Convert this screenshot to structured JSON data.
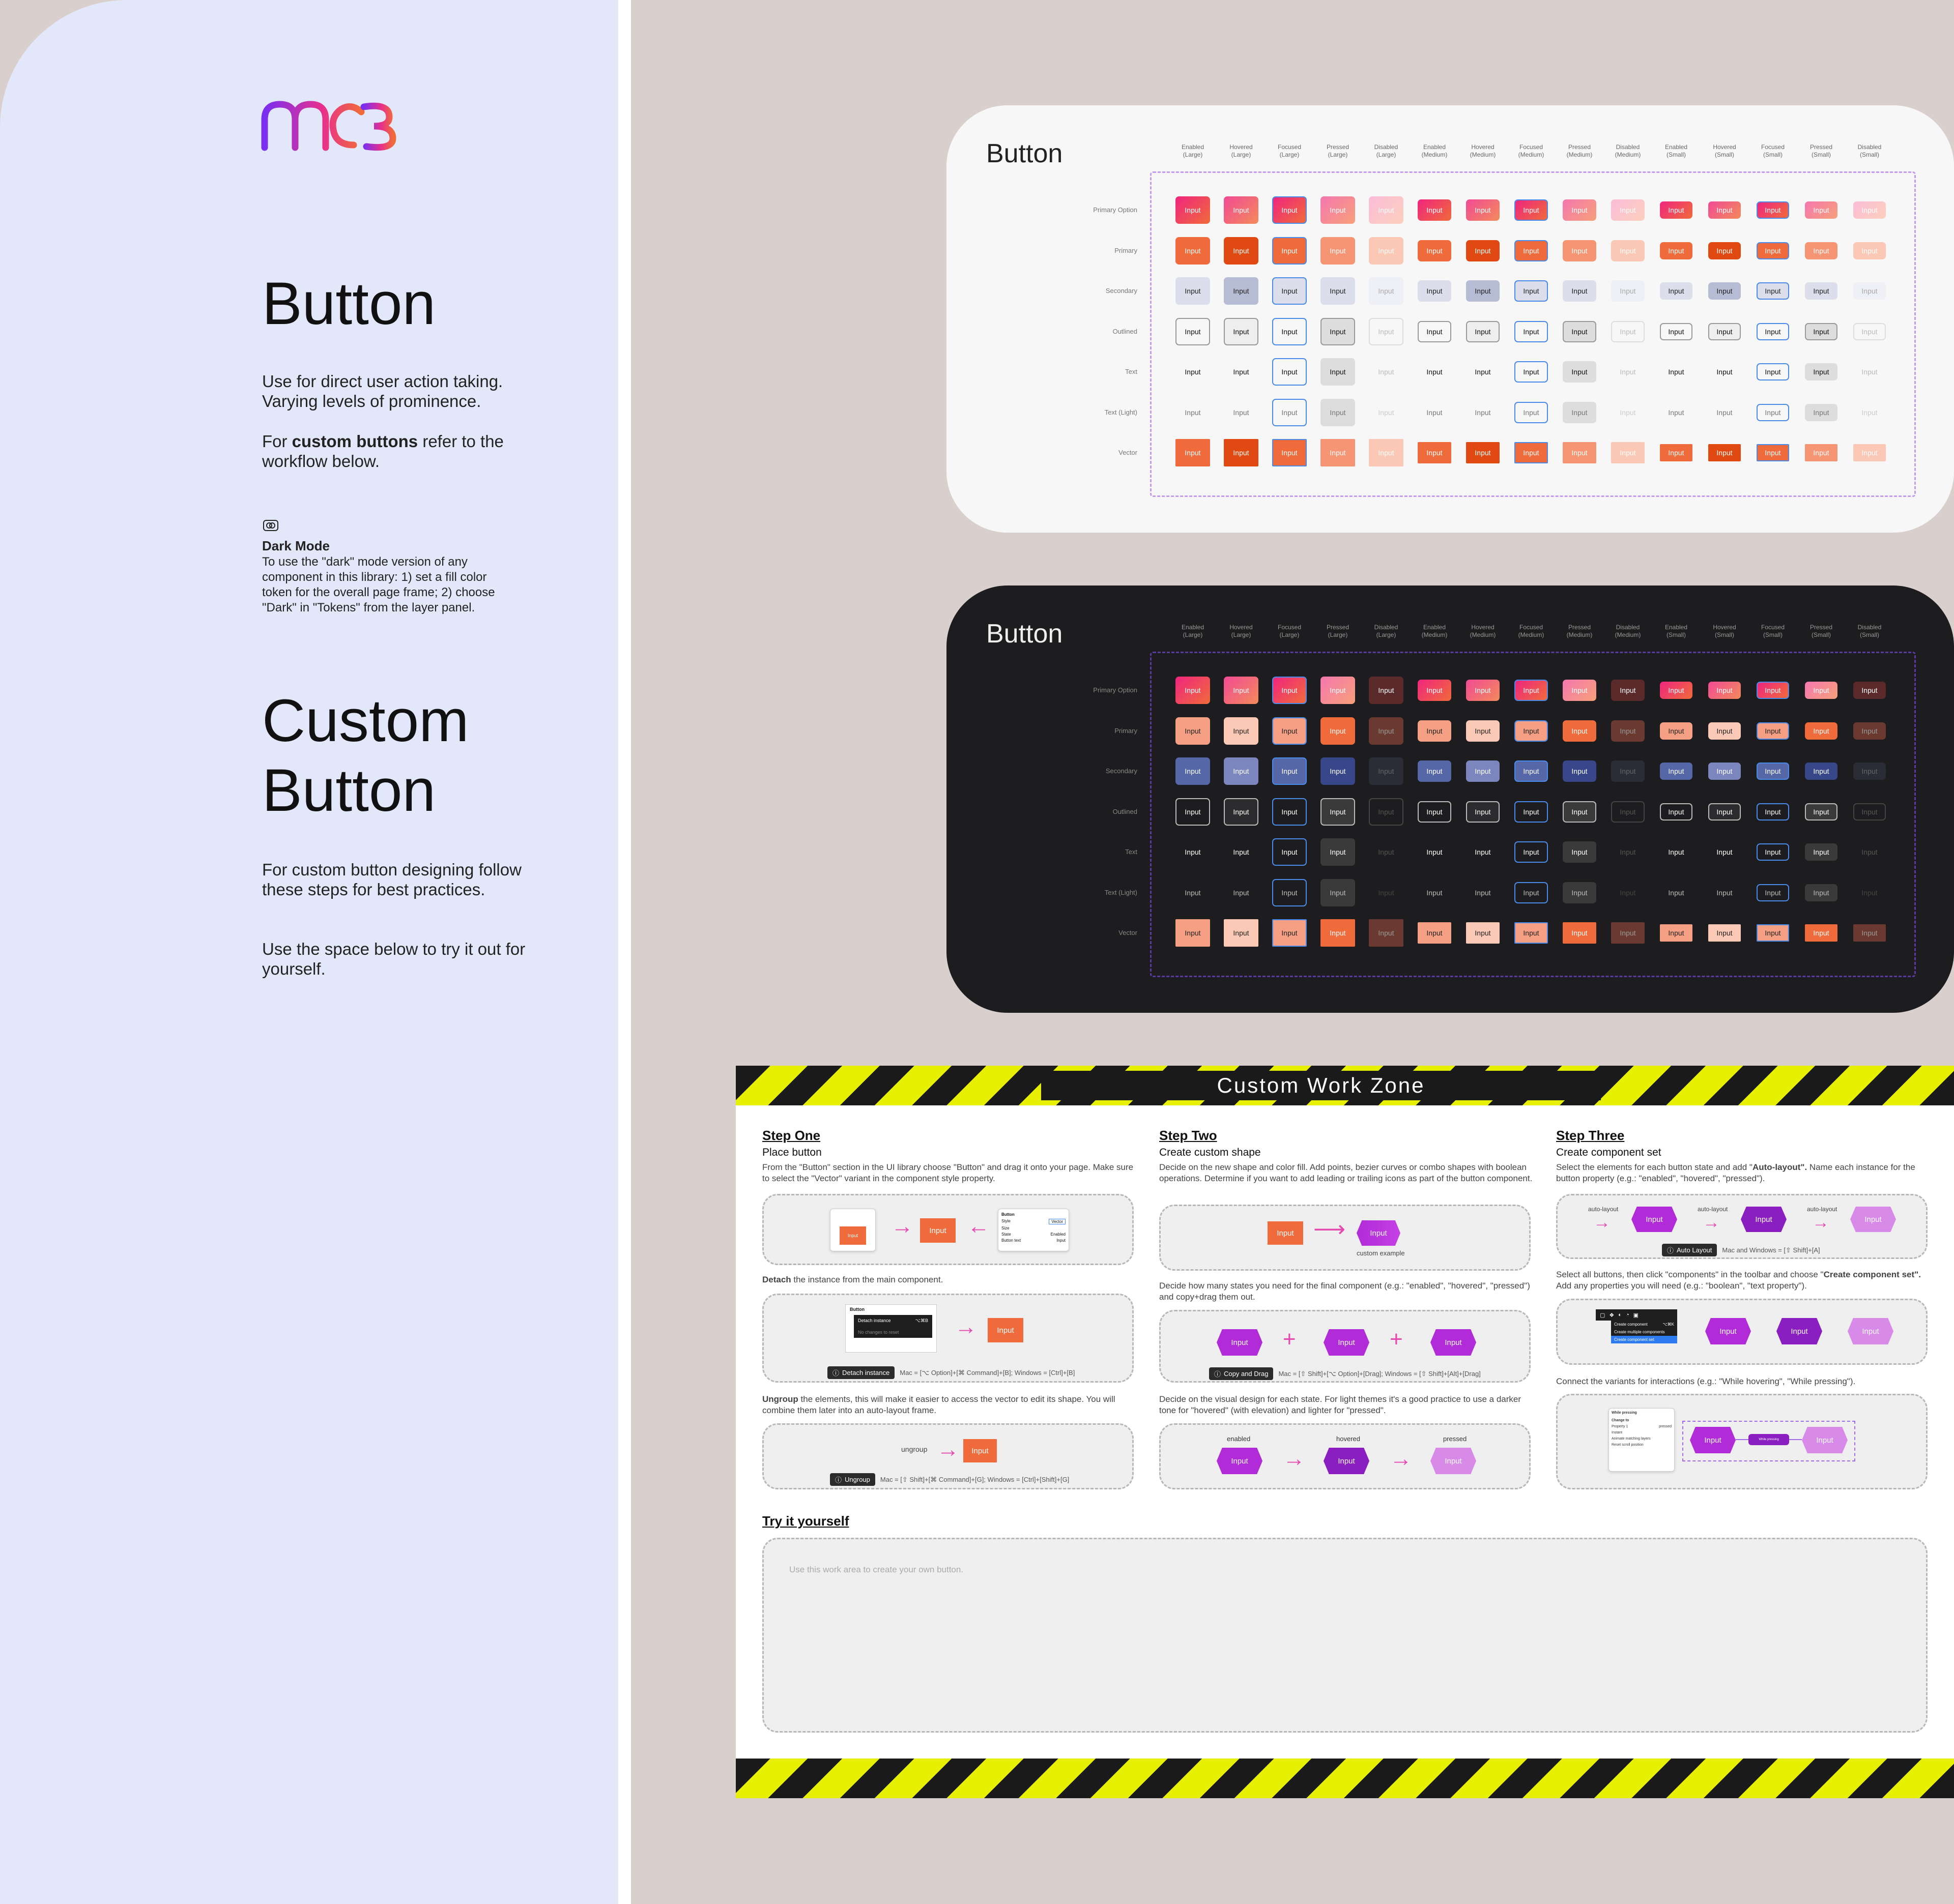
{
  "sidebar": {
    "logo_text": "mc3",
    "button_title": "Button",
    "button_desc_1": "Use for direct user action taking. Varying levels of prominence.",
    "button_desc_2_pre": "For ",
    "button_desc_2_bold": "custom buttons",
    "button_desc_2_post": " refer to the workflow below.",
    "dark_mode_title": "Dark  Mode",
    "dark_mode_desc": "To use the \"dark\" mode version of any component in this library: 1) set a fill color token for the overall page frame; 2) choose \"Dark\" in \"Tokens\" from the layer panel.",
    "custom_title_1": "Custom",
    "custom_title_2": "Button",
    "custom_desc_1": "For custom button designing follow these steps for best practices.",
    "custom_desc_2": "Use the space below to try it out for yourself."
  },
  "grid": {
    "title": "Button",
    "button_label": "Input",
    "columns": [
      [
        "Enabled",
        "(Large)"
      ],
      [
        "Hovered",
        "(Large)"
      ],
      [
        "Focused",
        "(Large)"
      ],
      [
        "Pressed",
        "(Large)"
      ],
      [
        "Disabled",
        "(Large)"
      ],
      [
        "Enabled",
        "(Medium)"
      ],
      [
        "Hovered",
        "(Medium)"
      ],
      [
        "Focused",
        "(Medium)"
      ],
      [
        "Pressed",
        "(Medium)"
      ],
      [
        "Disabled",
        "(Medium)"
      ],
      [
        "Enabled",
        "(Small)"
      ],
      [
        "Hovered",
        "(Small)"
      ],
      [
        "Focused",
        "(Small)"
      ],
      [
        "Pressed",
        "(Small)"
      ],
      [
        "Disabled",
        "(Small)"
      ]
    ],
    "rows": [
      "Primary Option",
      "Primary",
      "Secondary",
      "Outlined",
      "Text",
      "Text (Light)",
      "Vector"
    ]
  },
  "zone": {
    "title": "Custom Work Zone",
    "step1": {
      "title": "Step One",
      "subtitle": "Place button",
      "text": "From the \"Button\" section in the UI library choose \"Button\" and drag it onto your page. Make sure to select the  \"Vector\" variant in the component style property.",
      "detach_bold": "Detach",
      "detach_text": " the instance from the main component.",
      "detach_tip": "Detach instance",
      "detach_keys": "Mac = [⌥ Option]+[⌘ Command]+[B]; Windows = [Ctrl]+[B]",
      "detach_menu": "Detach instance",
      "detach_menu_key": "⌥⌘B",
      "detach_menu_2": "No changes to reset",
      "ungroup_bold": "Ungroup",
      "ungroup_text": " the elements, this will make it easier to access the vector to edit its shape. You will combine them later into an auto-layout frame.",
      "ungroup_label": "ungroup",
      "ungroup_tip": "Ungroup",
      "ungroup_keys": "Mac = [⇧ Shift]+[⌘ Command]+[G]; Windows = [Ctrl]+[Shift]+[G]",
      "panel_title": "Button",
      "panel_rows": [
        "Style",
        "Size",
        "State",
        "Button text"
      ],
      "panel_vals": [
        "Vector",
        "",
        "Enabled",
        "Input"
      ]
    },
    "step2": {
      "title": "Step Two",
      "subtitle": "Create custom shape",
      "text": "Decide on the new shape and color fill. Add points, bezier curves or combo shapes with boolean operations. Determine if you want to add leading or trailing icons as part of the button component.",
      "caption": "custom example",
      "text2": "Decide how many states you need for the final component (e.g.: \"enabled\", \"hovered\", \"pressed\") and copy+drag them out.",
      "copy_tip": "Copy and Drag",
      "copy_keys": "Mac = [⇧ Shift]+[⌥ Option]+[Drag]; Windows = [⇧ Shift]+[Alt]+[Drag]",
      "text3": "Decide on the visual design for each state. For light themes it's a good practice to use a darker tone for \"hovered\" (with elevation) and lighter for \"pressed\".",
      "states": [
        "enabled",
        "hovered",
        "pressed"
      ]
    },
    "step3": {
      "title": "Step Three",
      "subtitle": "Create component set",
      "text_pre": "Select the elements for each button state and add \"",
      "text_bold": "Auto-layout\".",
      "text_post": " Name each instance for the button property (e.g.: \"enabled\", \"hovered\", \"pressed\").",
      "auto_label": "auto-layout",
      "auto_tip": "Auto Layout",
      "auto_keys": "Mac and Windows = [⇧ Shift]+[A]",
      "text2_pre": "Select all buttons, then click \"components\" in the toolbar and choose \"",
      "text2_bold": "Create component set\".",
      "text2_post": " Add any properties you will need (e.g.: \"boolean\", \"text property\").",
      "menu_items": [
        "Create component",
        "Create multiple components",
        "Create component set"
      ],
      "menu_key": "⌥⌘K",
      "text3": "Connect the variants for interactions (e.g.: \"While hovering\", \"While pressing\").",
      "proto_title": "While pressing",
      "proto_rows": [
        "Change to",
        "Property 1",
        "pressed",
        "Instant",
        "Animate matching layers",
        "Reset scroll position"
      ]
    },
    "try": {
      "title": "Try it yourself",
      "placeholder": "Use this work area to create your own button."
    }
  },
  "colors": {
    "orange": "#ef6b3b",
    "pink": "#f0257f",
    "purple": "#a12ee0",
    "stripe_yellow": "#e6f000"
  }
}
